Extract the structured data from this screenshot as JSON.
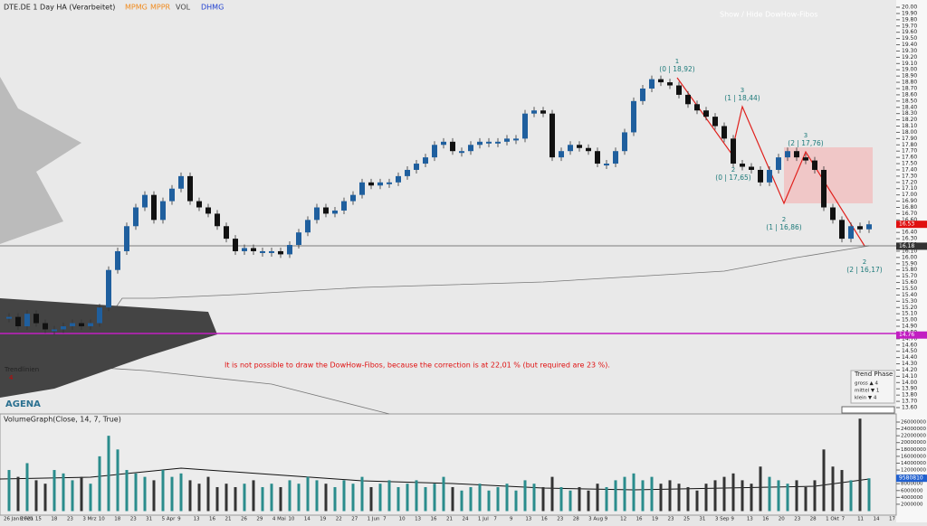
{
  "header": {
    "title": "DTE.DE 1 Day HA (Verarbeitet)",
    "indicators": [
      {
        "text": "MPMG",
        "color": "#f08a1c"
      },
      {
        "text": "MPPR",
        "color": "#f08a1c"
      },
      {
        "text": "VOL",
        "color": "#444444"
      },
      {
        "text": "DHMG",
        "color": "#1f3fd0"
      }
    ],
    "toggle": "Show / Hide DowHow-Fibos"
  },
  "chart_data": {
    "type": "candlestick",
    "up_color": "#1f5f9e",
    "down_color": "#111111",
    "ylim": [
      13.6,
      20.0
    ],
    "yticks": [
      {
        "value": 13.6,
        "label": "13.60"
      },
      {
        "value": 13.7,
        "label": "13.70"
      },
      {
        "value": 13.8,
        "label": "13.80"
      },
      {
        "value": 13.9,
        "label": "13.90"
      },
      {
        "value": 14.0,
        "label": "14.00"
      },
      {
        "value": 14.1,
        "label": "14.10"
      },
      {
        "value": 14.2,
        "label": "14.20"
      },
      {
        "value": 14.3,
        "label": "14.30"
      },
      {
        "value": 14.4,
        "label": "14.40"
      },
      {
        "value": 14.5,
        "label": "14.50"
      },
      {
        "value": 14.6,
        "label": "14.60"
      },
      {
        "value": 14.7,
        "label": "14.70"
      },
      {
        "value": 14.8,
        "label": "14.80"
      },
      {
        "value": 14.9,
        "label": "14.90"
      },
      {
        "value": 15.0,
        "label": "15.00"
      },
      {
        "value": 15.1,
        "label": "15.10"
      },
      {
        "value": 15.2,
        "label": "15.20"
      },
      {
        "value": 15.3,
        "label": "15.30"
      },
      {
        "value": 15.4,
        "label": "15.40"
      },
      {
        "value": 15.5,
        "label": "15.50"
      },
      {
        "value": 15.6,
        "label": "15.60"
      },
      {
        "value": 15.7,
        "label": "15.70"
      },
      {
        "value": 15.8,
        "label": "15.80"
      },
      {
        "value": 15.9,
        "label": "15.90"
      },
      {
        "value": 16.0,
        "label": "16.00"
      },
      {
        "value": 16.1,
        "label": "16.10"
      },
      {
        "value": 16.2,
        "label": "16.20"
      },
      {
        "value": 16.3,
        "label": "16.30"
      },
      {
        "value": 16.4,
        "label": "16.40"
      },
      {
        "value": 16.5,
        "label": "16.50"
      },
      {
        "value": 16.6,
        "label": "16.60"
      },
      {
        "value": 16.7,
        "label": "16.70"
      },
      {
        "value": 16.8,
        "label": "16.80"
      },
      {
        "value": 16.9,
        "label": "16.90"
      },
      {
        "value": 17.0,
        "label": "17.00"
      },
      {
        "value": 17.1,
        "label": "17.10"
      },
      {
        "value": 17.2,
        "label": "17.20"
      },
      {
        "value": 17.3,
        "label": "17.30"
      },
      {
        "value": 17.4,
        "label": "17.40"
      },
      {
        "value": 17.5,
        "label": "17.50"
      },
      {
        "value": 17.6,
        "label": "17.60"
      },
      {
        "value": 17.7,
        "label": "17.70"
      },
      {
        "value": 17.8,
        "label": "17.80"
      },
      {
        "value": 17.9,
        "label": "17.90"
      },
      {
        "value": 18.0,
        "label": "18.00"
      },
      {
        "value": 18.1,
        "label": "18.10"
      },
      {
        "value": 18.2,
        "label": "18.20"
      },
      {
        "value": 18.3,
        "label": "18.30"
      },
      {
        "value": 18.4,
        "label": "18.40"
      },
      {
        "value": 18.5,
        "label": "18.50"
      },
      {
        "value": 18.6,
        "label": "18.60"
      },
      {
        "value": 18.7,
        "label": "18.70"
      },
      {
        "value": 18.8,
        "label": "18.80"
      },
      {
        "value": 18.9,
        "label": "18.90"
      },
      {
        "value": 19.0,
        "label": "19.00"
      },
      {
        "value": 19.1,
        "label": "19.10"
      },
      {
        "value": 19.2,
        "label": "19.20"
      },
      {
        "value": 19.3,
        "label": "19.30"
      },
      {
        "value": 19.4,
        "label": "19.40"
      },
      {
        "value": 19.5,
        "label": "19.50"
      },
      {
        "value": 19.6,
        "label": "19.60"
      },
      {
        "value": 19.7,
        "label": "19.70"
      },
      {
        "value": 19.8,
        "label": "19.80"
      },
      {
        "value": 19.9,
        "label": "19.90"
      },
      {
        "value": 20.0,
        "label": "20.00"
      }
    ],
    "values": [
      15.05,
      14.9,
      15.1,
      14.95,
      14.85,
      14.85,
      14.9,
      14.95,
      14.9,
      14.95,
      15.2,
      15.8,
      16.1,
      16.5,
      16.8,
      17.0,
      16.6,
      16.9,
      17.1,
      17.3,
      16.9,
      16.8,
      16.7,
      16.5,
      16.3,
      16.1,
      16.15,
      16.1,
      16.1,
      16.1,
      16.05,
      16.2,
      16.4,
      16.6,
      16.8,
      16.7,
      16.75,
      16.9,
      17.0,
      17.2,
      17.15,
      17.2,
      17.2,
      17.3,
      17.4,
      17.5,
      17.6,
      17.8,
      17.85,
      17.7,
      17.7,
      17.8,
      17.85,
      17.85,
      17.85,
      17.9,
      17.9,
      18.3,
      18.35,
      18.3,
      17.6,
      17.7,
      17.8,
      17.75,
      17.7,
      17.5,
      17.5,
      17.7,
      18.0,
      18.5,
      18.7,
      18.85,
      18.8,
      18.75,
      18.6,
      18.45,
      18.35,
      18.25,
      18.1,
      17.9,
      17.5,
      17.45,
      17.4,
      17.2,
      17.4,
      17.6,
      17.7,
      17.6,
      17.55,
      17.4,
      16.8,
      16.6,
      16.3,
      16.5,
      16.45,
      16.53
    ],
    "price_markers": [
      {
        "value": 16.53,
        "label": "16.53"
      },
      {
        "value": 16.18,
        "label": "16.18"
      },
      {
        "value": 14.76,
        "label": "14.76"
      }
    ],
    "waves": [
      {
        "count": "1",
        "text": "(0 | 18,92)"
      },
      {
        "count": "3",
        "text": "(1 | 18,44)"
      },
      {
        "count": "2",
        "text": "(0 | 17,65)"
      },
      {
        "count": "3",
        "text": "(2 | 17,76)"
      },
      {
        "count": "2",
        "text": "(1 | 16,86)"
      },
      {
        "count": "2",
        "text": "(2 | 16,17)"
      }
    ],
    "message": "It is not possible to draw the DowHow-Fibos, because the correction is at 22,01 % (but required are 23 %).",
    "trend_label": "Trendlinien",
    "trend_count": "4",
    "trend_phase": {
      "title": "Trend Phase",
      "rows": [
        "gross ▲ 4",
        "mittel ▼ 1",
        "klein ▼ 4"
      ]
    },
    "logo": "AGENA",
    "x_labels": [
      "26 Jan 2021",
      "8 Feb",
      "15",
      "18",
      "23",
      "3 Mrz",
      "10",
      "18",
      "23",
      "31",
      "5 Apr",
      "9",
      "13",
      "16",
      "21",
      "26",
      "29",
      "4 Mai",
      "10",
      "14",
      "19",
      "22",
      "27",
      "1 Jun",
      "7",
      "10",
      "13",
      "16",
      "21",
      "24",
      "1 Jul",
      "7",
      "9",
      "13",
      "16",
      "23",
      "28",
      "3 Aug",
      "9",
      "12",
      "16",
      "19",
      "23",
      "25",
      "31",
      "3 Sep",
      "9",
      "13",
      "16",
      "20",
      "23",
      "28",
      "1 Okt",
      "7",
      "11",
      "14",
      "17"
    ]
  },
  "volume": {
    "title": "VolumeGraph(Close, 14, 7, True)",
    "up_color": "#2a8c8c",
    "down_color": "#333333",
    "ylim": [
      0,
      26000000
    ],
    "yticks": [
      26000000,
      24000000,
      22000000,
      20000000,
      18000000,
      16000000,
      14000000,
      12000000,
      10000000,
      8000000,
      6000000,
      4000000,
      2000000
    ],
    "values": [
      12000000,
      10000000,
      14000000,
      9000000,
      8000000,
      12000000,
      11000000,
      9000000,
      10000000,
      8000000,
      16000000,
      22000000,
      18000000,
      12000000,
      11000000,
      10000000,
      9000000,
      12000000,
      10000000,
      11000000,
      9000000,
      8000000,
      10000000,
      7000000,
      8000000,
      7000000,
      8000000,
      9000000,
      7000000,
      8000000,
      7000000,
      9000000,
      8000000,
      10000000,
      9000000,
      8000000,
      7000000,
      9000000,
      8000000,
      10000000,
      7000000,
      8000000,
      9000000,
      7000000,
      8000000,
      9000000,
      7000000,
      8000000,
      10000000,
      7000000,
      6000000,
      7000000,
      8000000,
      6000000,
      7000000,
      8000000,
      6000000,
      9000000,
      8000000,
      7000000,
      10000000,
      7000000,
      6000000,
      7000000,
      6000000,
      8000000,
      7000000,
      9000000,
      10000000,
      11000000,
      9000000,
      10000000,
      8000000,
      9000000,
      8000000,
      7000000,
      6000000,
      8000000,
      9000000,
      10000000,
      11000000,
      9000000,
      8000000,
      13000000,
      10000000,
      9000000,
      8000000,
      9000000,
      7000000,
      9000000,
      18000000,
      13000000,
      12000000,
      9000000,
      27000000,
      9580810
    ],
    "last_label": "9580810"
  }
}
